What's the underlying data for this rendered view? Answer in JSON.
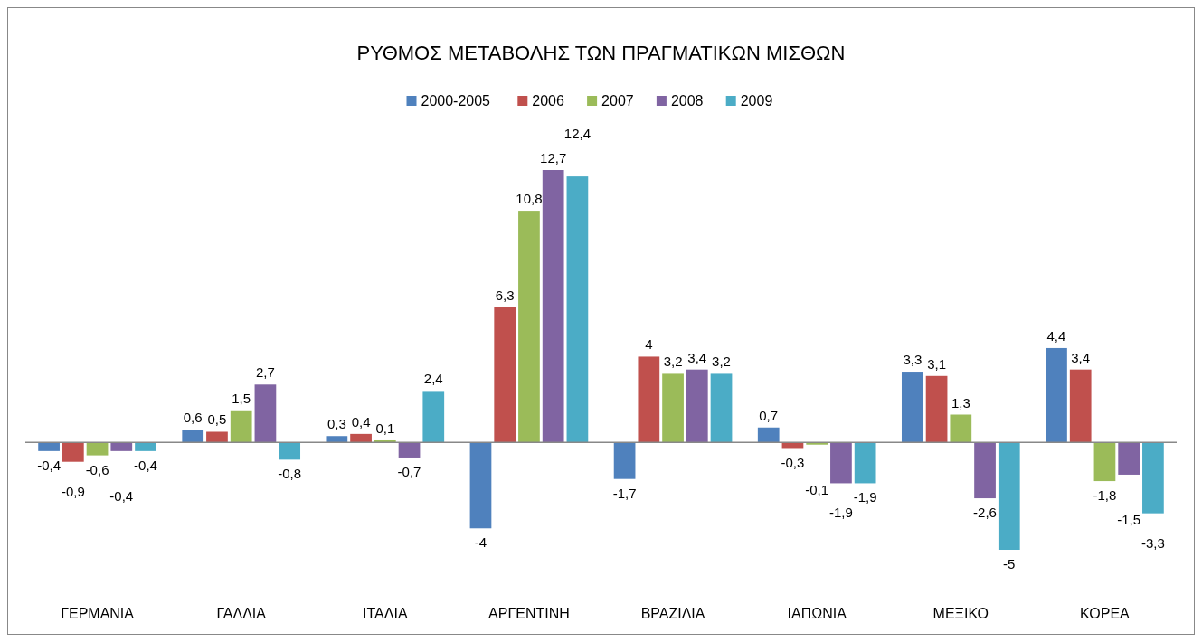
{
  "chart_data": {
    "type": "bar",
    "title": "ΡΥΘΜΟΣ ΜΕΤΑΒΟΛΗΣ ΤΩΝ ΠΡΑΓΜΑΤΙΚΩΝ ΜΙΣΘΩΝ",
    "categories": [
      "ΓΕΡΜΑΝΙΑ",
      "ΓΑΛΛΙΑ",
      "ΙΤΑΛΙΑ",
      "ΑΡΓΕΝΤΙΝΗ",
      "ΒΡΑΖΙΛΙΑ",
      "ΙΑΠΩΝΙΑ",
      "ΜΕΞΙΚΟ",
      "ΚΟΡΕΑ"
    ],
    "legend": "top",
    "series": [
      {
        "name": "2000-2005",
        "color": "#4f81bd",
        "values": [
          -0.4,
          0.6,
          0.3,
          -4,
          -1.7,
          0.7,
          3.3,
          4.4
        ],
        "value_labels": [
          "-0,4",
          "0,6",
          "0,3",
          "-4",
          "-1,7",
          "0,7",
          "3,3",
          "4,4"
        ]
      },
      {
        "name": "2006",
        "color": "#c0504d",
        "values": [
          -0.9,
          0.5,
          0.4,
          6.3,
          4,
          -0.3,
          3.1,
          3.4
        ],
        "value_labels": [
          "-0,9",
          "0,5",
          "0,4",
          "6,3",
          "4",
          "-0,3",
          "3,1",
          "3,4"
        ]
      },
      {
        "name": "2007",
        "color": "#9bbb59",
        "values": [
          -0.6,
          1.5,
          0.1,
          10.8,
          3.2,
          -0.1,
          1.3,
          -1.8
        ],
        "value_labels": [
          "-0,6",
          "1,5",
          "0,1",
          "10,8",
          "3,2",
          "-0,1",
          "1,3",
          "-1,8"
        ]
      },
      {
        "name": "2008",
        "color": "#8064a2",
        "values": [
          -0.4,
          2.7,
          -0.7,
          12.7,
          3.4,
          -1.9,
          -2.6,
          -1.5
        ],
        "value_labels": [
          "-0,4",
          "2,7",
          "-0,7",
          "12,7",
          "3,4",
          "-1,9",
          "-2,6",
          "-1,5"
        ]
      },
      {
        "name": "2009",
        "color": "#4bacc6",
        "values": [
          -0.4,
          -0.8,
          2.4,
          12.4,
          3.2,
          -1.9,
          -5,
          -3.3
        ],
        "value_labels": [
          "-0,4",
          "-0,8",
          "2,4",
          "12,4",
          "3,2",
          "-1,9",
          "-5",
          "-3,3"
        ]
      }
    ]
  }
}
